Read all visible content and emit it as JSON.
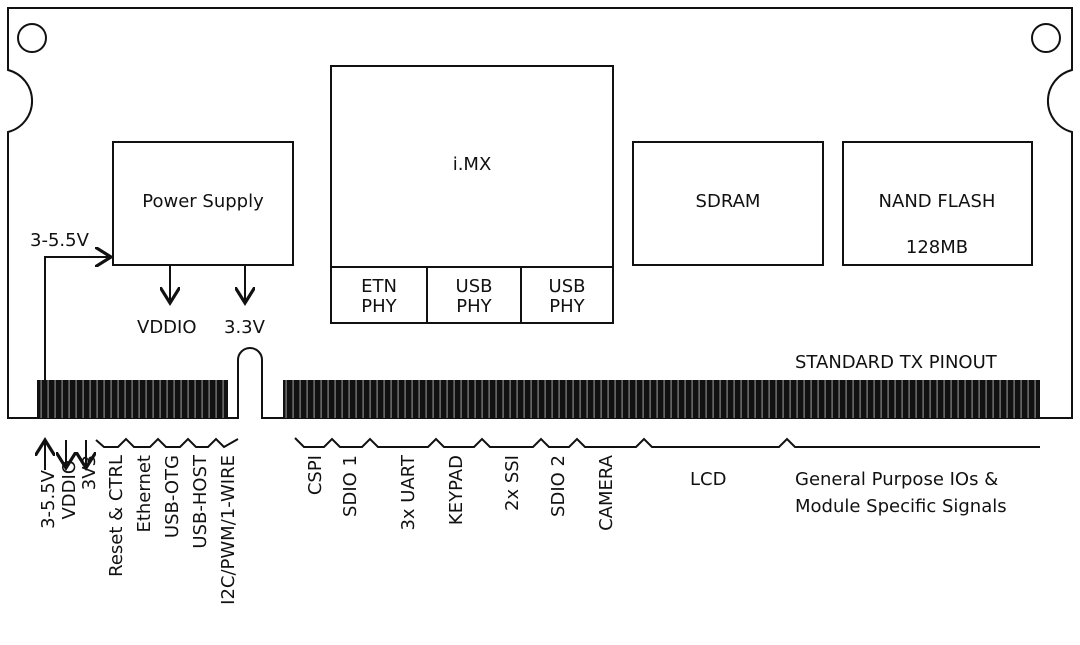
{
  "blocks": {
    "power_supply": "Power Supply",
    "imx": "i.MX",
    "etn_phy": [
      "ETN",
      "PHY"
    ],
    "usb_phy_1": [
      "USB",
      "PHY"
    ],
    "usb_phy_2": [
      "USB",
      "PHY"
    ],
    "sdram": "SDRAM",
    "nand_flash": "NAND FLASH",
    "nand_size": "128MB"
  },
  "power": {
    "input": "3-5.5V",
    "vddio": "VDDIO",
    "v33": "3.3V"
  },
  "pinout_title": "STANDARD TX PINOUT",
  "left_signals": [
    "3-5.5V",
    "VDDIO",
    "3V3",
    "Reset & CTRL",
    "Ethernet",
    "USB-OTG",
    "USB-HOST",
    "I2C/PWM/1-WIRE"
  ],
  "right_signals": [
    "CSPI",
    "SDIO 1",
    "3x UART",
    "KEYPAD",
    "2x SSI",
    "SDIO 2",
    "CAMERA"
  ],
  "lcd": "LCD",
  "gpio": [
    "General Purpose IOs &",
    "Module Specific Signals"
  ]
}
